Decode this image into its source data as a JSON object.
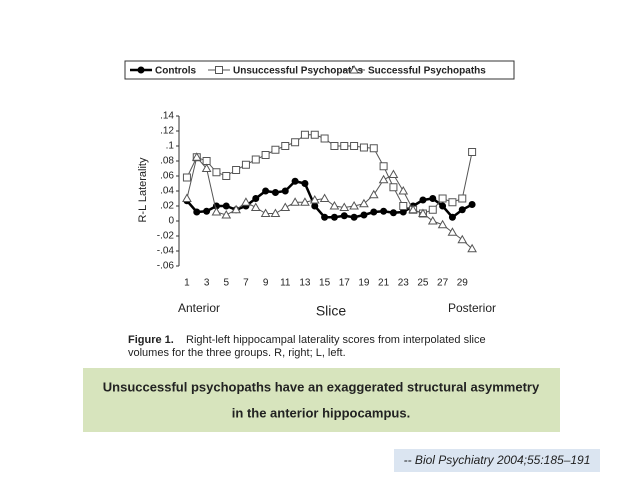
{
  "chart_data": {
    "type": "line",
    "y_label": "R-L Laterality",
    "x_label": "Slice",
    "annotations": [
      "Anterior",
      "Posterior"
    ],
    "x": [
      1,
      2,
      3,
      4,
      5,
      6,
      7,
      8,
      9,
      10,
      11,
      12,
      13,
      14,
      15,
      16,
      17,
      18,
      19,
      20,
      21,
      22,
      23,
      24,
      25,
      26,
      27,
      28,
      29,
      30
    ],
    "series": [
      {
        "name": "Controls",
        "color": "#000000",
        "marker": "circle",
        "values": [
          0.027,
          0.012,
          0.013,
          0.02,
          0.02,
          0.015,
          0.02,
          0.03,
          0.04,
          0.038,
          0.04,
          0.053,
          0.05,
          0.02,
          0.005,
          0.005,
          0.007,
          0.005,
          0.008,
          0.012,
          0.013,
          0.011,
          0.012,
          0.02,
          0.028,
          0.03,
          0.02,
          0.005,
          0.015,
          0.022
        ]
      },
      {
        "name": "Unsuccessful Psychopaths",
        "color": "#555555",
        "marker": "square",
        "values": [
          0.058,
          0.085,
          0.08,
          0.065,
          0.06,
          0.068,
          0.075,
          0.082,
          0.088,
          0.095,
          0.1,
          0.105,
          0.115,
          0.115,
          0.11,
          0.1,
          0.1,
          0.1,
          0.098,
          0.097,
          0.073,
          0.045,
          0.02,
          0.015,
          0.01,
          0.015,
          0.03,
          0.025,
          0.03,
          0.092
        ]
      },
      {
        "name": "Successful Psychopaths",
        "color": "#555555",
        "marker": "triangle",
        "values": [
          0.03,
          0.085,
          0.07,
          0.012,
          0.008,
          0.015,
          0.025,
          0.018,
          0.01,
          0.01,
          0.018,
          0.025,
          0.025,
          0.028,
          0.03,
          0.02,
          0.018,
          0.02,
          0.023,
          0.035,
          0.055,
          0.062,
          0.04,
          0.015,
          0.01,
          0.0,
          -0.005,
          -0.015,
          -0.025,
          -0.037
        ]
      }
    ],
    "xlim": [
      0.6,
      30.6
    ],
    "xticks": [
      1,
      3,
      5,
      7,
      9,
      11,
      13,
      15,
      17,
      19,
      21,
      23,
      25,
      27,
      29
    ],
    "ylim": [
      -0.06,
      0.14
    ],
    "yticks": [
      {
        "value": 0.14,
        "label": ".14"
      },
      {
        "value": 0.12,
        "label": ".12"
      },
      {
        "value": 0.1,
        "label": ".1"
      },
      {
        "value": 0.08,
        "label": ".08"
      },
      {
        "value": 0.06,
        "label": ".06"
      },
      {
        "value": 0.04,
        "label": ".04"
      },
      {
        "value": 0.02,
        "label": ".02"
      },
      0,
      {
        "value": -0.02,
        "label": "-.02"
      },
      {
        "value": -0.04,
        "label": "-.04"
      },
      {
        "value": -0.06,
        "label": "-.06"
      }
    ]
  },
  "figure_caption": {
    "label": "Figure 1.",
    "lines": [
      "Right-left hippocampal laterality scores from interpolated slice",
      "volumes for the three groups. R, right; L, left."
    ]
  },
  "callout": [
    "Unsuccessful psychopaths have an exaggerated structural asymmetry",
    "in the anterior hippocampus."
  ],
  "citation": "-- Biol Psychiatry 2004;55:185–191"
}
